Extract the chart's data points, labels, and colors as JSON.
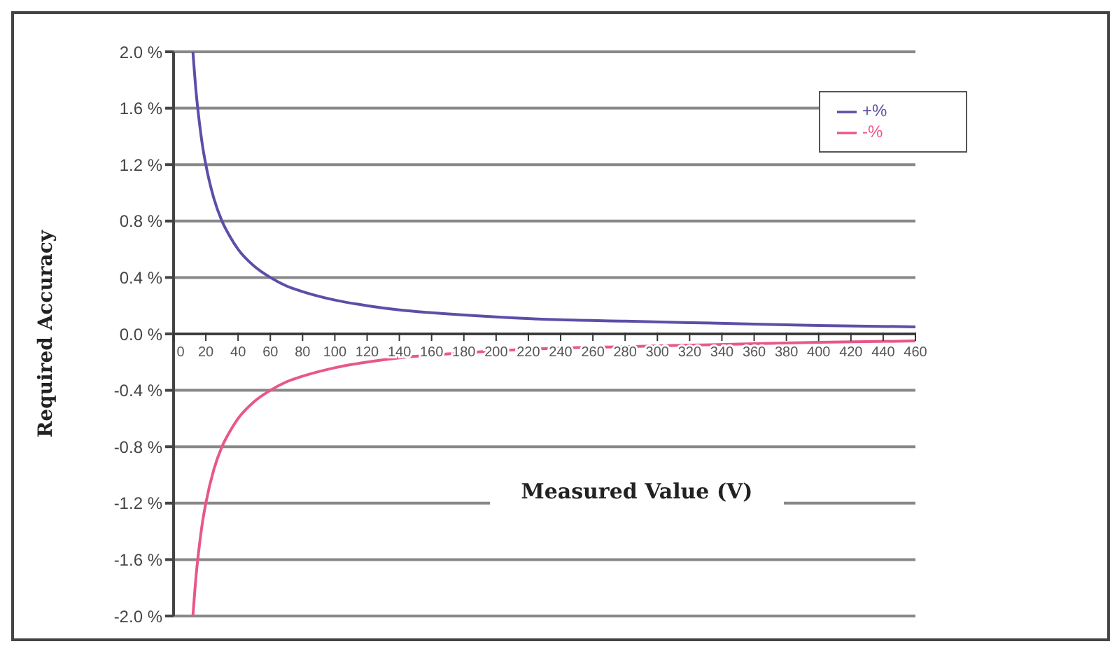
{
  "chart_data": {
    "type": "line",
    "xlabel": "Measured Value (V)",
    "ylabel": "Required Accuracy",
    "x": [
      12,
      14,
      16,
      18,
      20,
      25,
      30,
      35,
      40,
      50,
      60,
      70,
      80,
      100,
      120,
      140,
      160,
      200,
      240,
      280,
      320,
      360,
      400,
      460
    ],
    "series": [
      {
        "name": "+%",
        "color": "#5b4fa8",
        "values": [
          2.0,
          1.71,
          1.5,
          1.33,
          1.2,
          0.96,
          0.8,
          0.69,
          0.6,
          0.48,
          0.4,
          0.34,
          0.3,
          0.24,
          0.2,
          0.17,
          0.15,
          0.12,
          0.1,
          0.09,
          0.08,
          0.07,
          0.06,
          0.05
        ]
      },
      {
        "name": "-%",
        "color": "#e8578a",
        "values": [
          -2.0,
          -1.71,
          -1.5,
          -1.33,
          -1.2,
          -0.96,
          -0.8,
          -0.69,
          -0.6,
          -0.48,
          -0.4,
          -0.34,
          -0.3,
          -0.24,
          -0.2,
          -0.17,
          -0.15,
          -0.12,
          -0.1,
          -0.09,
          -0.08,
          -0.07,
          -0.06,
          -0.05
        ]
      }
    ],
    "xlim": [
      0,
      460
    ],
    "xticks": [
      0,
      20,
      40,
      60,
      80,
      100,
      120,
      140,
      160,
      180,
      200,
      220,
      240,
      260,
      280,
      300,
      320,
      340,
      360,
      380,
      400,
      420,
      440,
      460
    ],
    "ylim": [
      -2.0,
      2.0
    ],
    "yticks": [
      {
        "value": -2.0,
        "label": "-2.0 %"
      },
      {
        "value": -1.6,
        "label": "-1.6 %"
      },
      {
        "value": -1.2,
        "label": "-1.2 %"
      },
      {
        "value": -0.8,
        "label": "-0.8 %"
      },
      {
        "value": -0.4,
        "label": "-0.4 %"
      },
      {
        "value": 0,
        "label": "0.0 %"
      },
      {
        "value": 0.4,
        "label": "0.4 %"
      },
      {
        "value": 0.8,
        "label": "0.8 %"
      },
      {
        "value": 1.2,
        "label": "1.2 %"
      },
      {
        "value": 1.6,
        "label": "1.6 %"
      },
      {
        "value": 2.0,
        "label": "2.0 %"
      }
    ],
    "grid": "y",
    "legend": "top right",
    "marker": "none",
    "line_style": "solid"
  }
}
